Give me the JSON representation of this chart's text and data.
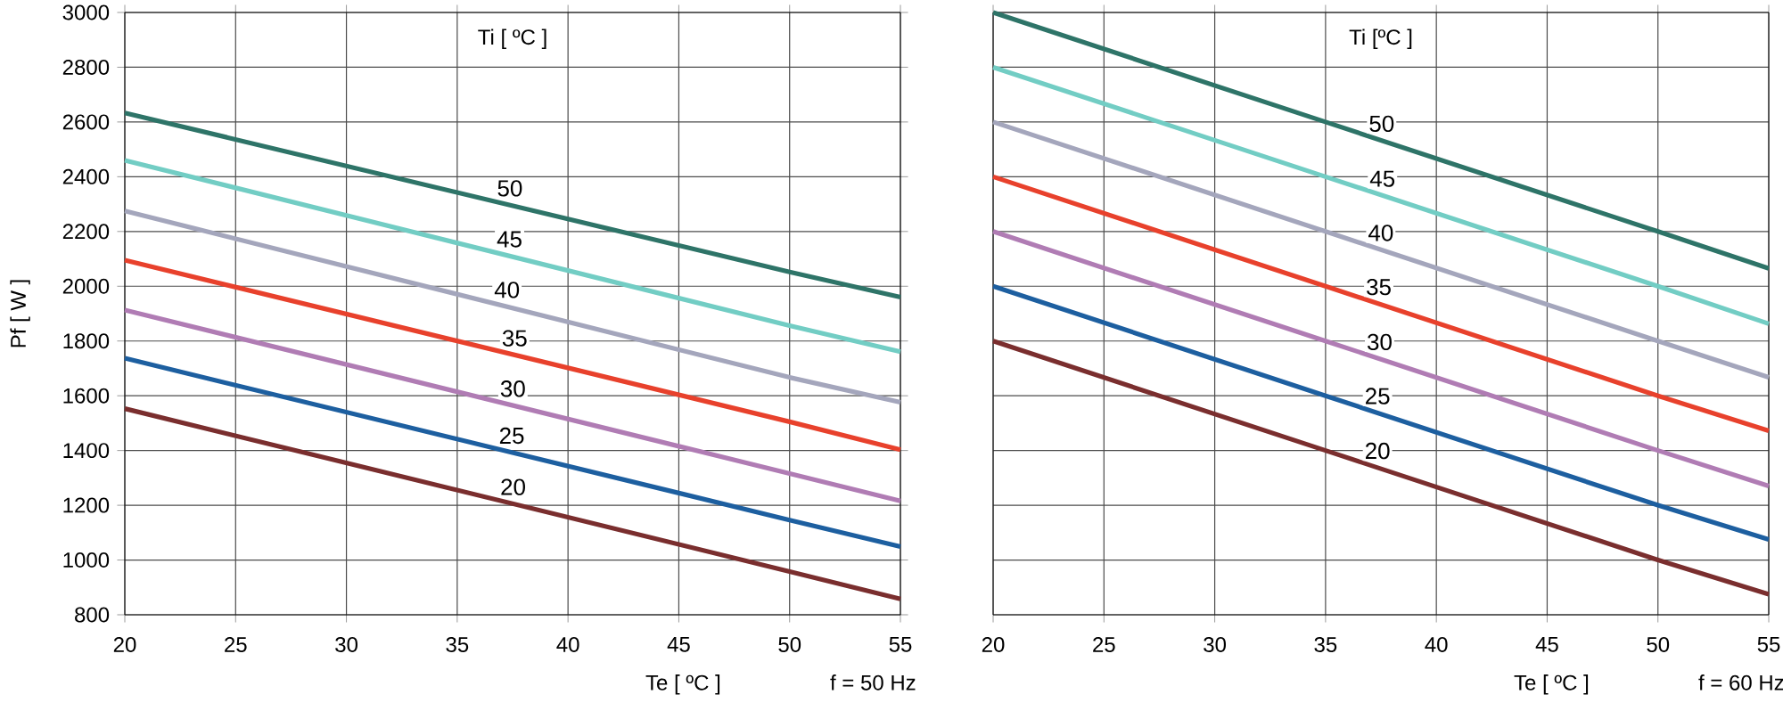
{
  "chart_data": [
    {
      "type": "line",
      "x": [
        20,
        50,
        55
      ],
      "xlim": [
        20,
        55
      ],
      "xticks": [
        20,
        25,
        30,
        35,
        40,
        45,
        50,
        55
      ],
      "ylim": [
        800,
        3000
      ],
      "yticks": [
        800,
        1000,
        1200,
        1400,
        1600,
        1800,
        2000,
        2200,
        2400,
        2600,
        2800,
        3000
      ],
      "grid": true,
      "xlabel": "Te  [ ºC ]",
      "ylabel": "Pf  [ W ]",
      "legend_title": "Ti  [ ºC ]",
      "annotations": [
        "f = 50 Hz"
      ],
      "series": [
        {
          "name": "50",
          "color": "#2e7468",
          "values": [
            2633,
            2052,
            1960
          ]
        },
        {
          "name": "45",
          "color": "#72cdc4",
          "values": [
            2460,
            1856,
            1761
          ]
        },
        {
          "name": "40",
          "color": "#a4a6bc",
          "values": [
            2275,
            1667,
            1576
          ]
        },
        {
          "name": "35",
          "color": "#e8412c",
          "values": [
            2095,
            1505,
            1403
          ]
        },
        {
          "name": "30",
          "color": "#b07cb4",
          "values": [
            1913,
            1316,
            1216
          ]
        },
        {
          "name": "25",
          "color": "#1d5fa0",
          "values": [
            1737,
            1146,
            1049
          ]
        },
        {
          "name": "20",
          "color": "#7a2e2e",
          "values": [
            1553,
            958,
            858
          ]
        }
      ]
    },
    {
      "type": "line",
      "x": [
        20,
        35,
        50,
        55
      ],
      "xlim": [
        20,
        55
      ],
      "xticks": [
        20,
        25,
        30,
        35,
        40,
        45,
        50,
        55
      ],
      "ylim": [
        800,
        3000
      ],
      "yticks": [
        800,
        1000,
        1200,
        1400,
        1600,
        1800,
        2000,
        2200,
        2400,
        2600,
        2800,
        3000
      ],
      "grid": true,
      "tick_labels": "x",
      "xlabel": "Te  [ ºC ]",
      "legend_title": "Ti [ºC ]",
      "annotations": [
        "f = 60 Hz"
      ],
      "series": [
        {
          "name": "50",
          "color": "#2e7468",
          "values": [
            3000,
            2600,
            2200,
            2065
          ]
        },
        {
          "name": "45",
          "color": "#72cdc4",
          "values": [
            2800,
            2400,
            2000,
            1863
          ]
        },
        {
          "name": "40",
          "color": "#a4a6bc",
          "values": [
            2600,
            2200,
            1800,
            1667
          ]
        },
        {
          "name": "35",
          "color": "#e8412c",
          "values": [
            2400,
            2000,
            1600,
            1472
          ]
        },
        {
          "name": "30",
          "color": "#b07cb4",
          "values": [
            2200,
            1800,
            1400,
            1270
          ]
        },
        {
          "name": "25",
          "color": "#1d5fa0",
          "values": [
            2000,
            1600,
            1200,
            1075
          ]
        },
        {
          "name": "20",
          "color": "#7a2e2e",
          "values": [
            1800,
            1400,
            1000,
            875
          ]
        }
      ]
    }
  ]
}
